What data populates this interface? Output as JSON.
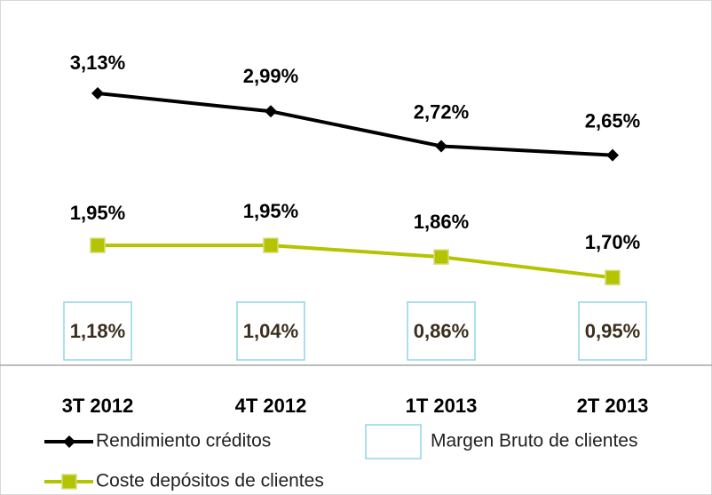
{
  "chart_data": {
    "type": "line",
    "categories": [
      "3T 2012",
      "4T 2012",
      "1T 2013",
      "2T 2013"
    ],
    "series": [
      {
        "name": "Rendimiento créditos",
        "color": "#000000",
        "marker": "diamond",
        "values": [
          3.13,
          2.99,
          2.72,
          2.65
        ],
        "value_labels": [
          "3,13%",
          "2,99%",
          "2,72%",
          "2,65%"
        ]
      },
      {
        "name": "Coste depósitos de clientes",
        "color": "#b5c400",
        "marker": "square",
        "values": [
          1.95,
          1.95,
          1.86,
          1.7
        ],
        "value_labels": [
          "1,95%",
          "1,95%",
          "1,86%",
          "1,70%"
        ]
      },
      {
        "name": "Margen Bruto de clientes",
        "color": "#8fd6e6",
        "display": "boxed-label",
        "values": [
          1.18,
          1.04,
          0.86,
          0.95
        ],
        "value_labels": [
          "1,18%",
          "1,04%",
          "0,86%",
          "0,95%"
        ]
      }
    ]
  }
}
